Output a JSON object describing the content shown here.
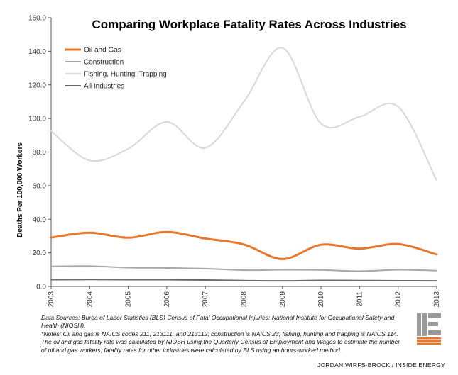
{
  "chart_data": {
    "type": "line",
    "title": "Comparing Workplace Fatality Rates Across Industries",
    "xlabel": "",
    "ylabel": "Deaths Per 100,000 Workers",
    "x": [
      "2003",
      "2004",
      "2005",
      "2006",
      "2007",
      "2008",
      "2009",
      "2010",
      "2011",
      "2012",
      "2013"
    ],
    "ylim": [
      0,
      160
    ],
    "yticks": [
      "0.0",
      "20.0",
      "40.0",
      "60.0",
      "80.0",
      "100.0",
      "120.0",
      "140.0",
      "160.0"
    ],
    "grid": false,
    "legend_position": "top-left",
    "series": [
      {
        "name": "Oil and Gas",
        "color": "#e8772e",
        "width": 3,
        "values": [
          29.1,
          32.0,
          29.0,
          32.4,
          28.5,
          25.0,
          16.3,
          24.8,
          22.5,
          25.2,
          19.0
        ]
      },
      {
        "name": "Construction",
        "color": "#a8a8a8",
        "width": 2,
        "values": [
          11.9,
          12.1,
          11.2,
          11.0,
          10.6,
          9.7,
          9.9,
          9.8,
          9.1,
          9.9,
          9.4
        ]
      },
      {
        "name": "Fishing, Hunting, Trapping",
        "color": "#d8d8d8",
        "width": 2,
        "values": [
          92.5,
          75.0,
          82.0,
          98.0,
          82.5,
          110.0,
          142.0,
          97.0,
          101.0,
          107.0,
          63.0
        ]
      },
      {
        "name": "All Industries",
        "color": "#6a6a6a",
        "width": 2,
        "values": [
          4.0,
          4.1,
          4.0,
          4.0,
          3.8,
          3.5,
          3.3,
          3.6,
          3.5,
          3.4,
          3.3
        ]
      }
    ]
  },
  "notes": {
    "sources": "Data Sources: Burea of Labor Statistics (BLS) Census of Fatal Occupational Injuries; National Institute for Occupational Safety and Health (NIOSH).",
    "definitions": "*Notes: Oil and gas is NAICS codes 211, 213111, and 213112; construction is NAICS 23; fishing, hunting and trapping is NAICS 114. The oil and gas fatality rate was calculated by NIOSH using the Quarterly Census of Employment and Wages to estimate the number of oil and gas workers; fatality rates for other industries were calculated by BLS using an hours-worked method."
  },
  "credit": "JORDAN WIRFS-BROCK / INSIDE ENERGY",
  "logo": {
    "icon": "inside-energy-logo",
    "accent": "#e8772e",
    "gray": "#9a9a9a"
  }
}
